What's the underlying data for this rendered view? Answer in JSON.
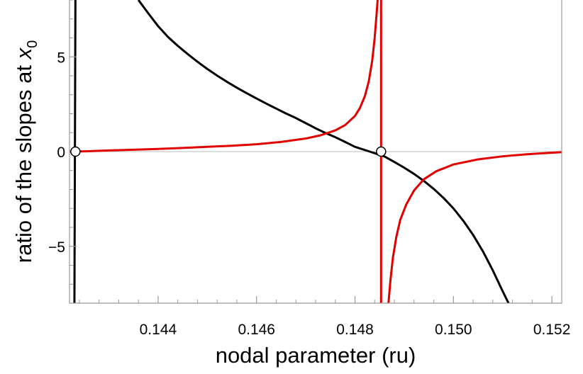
{
  "chart_data": {
    "type": "line",
    "xlabel": "nodal parameter (ru)",
    "ylabel_main": "ratio of the slopes at ",
    "ylabel_var": "x",
    "ylabel_sub": "0",
    "xlim": [
      0.1422,
      0.1522
    ],
    "ylim": [
      -8.0,
      8.0
    ],
    "x_ticks": [
      0.144,
      0.146,
      0.148,
      0.15,
      0.152
    ],
    "x_tick_labels": [
      "0.144",
      "0.146",
      "0.148",
      "0.150",
      "0.152"
    ],
    "y_ticks": [
      -5,
      0,
      5
    ],
    "y_tick_labels": [
      "−5",
      "0",
      "5"
    ],
    "grid": false,
    "zero_line": true,
    "series": [
      {
        "color": "#000000",
        "kind": "left-branch",
        "points": [
          [
            0.1423,
            -8.0
          ],
          [
            0.14232,
            8.0
          ]
        ]
      },
      {
        "color": "#000000",
        "kind": "main-curve",
        "points": [
          [
            0.1436,
            8.0
          ],
          [
            0.1438,
            7.3
          ],
          [
            0.144,
            6.62
          ],
          [
            0.1442,
            6.05
          ],
          [
            0.1444,
            5.58
          ],
          [
            0.1446,
            5.15
          ],
          [
            0.1448,
            4.74
          ],
          [
            0.145,
            4.36
          ],
          [
            0.1452,
            4.01
          ],
          [
            0.1454,
            3.68
          ],
          [
            0.1456,
            3.37
          ],
          [
            0.1458,
            3.08
          ],
          [
            0.146,
            2.8
          ],
          [
            0.1462,
            2.53
          ],
          [
            0.1464,
            2.27
          ],
          [
            0.1466,
            2.01
          ],
          [
            0.1468,
            1.77
          ],
          [
            0.147,
            1.5
          ],
          [
            0.1472,
            1.23
          ],
          [
            0.1474,
            0.98
          ],
          [
            0.1476,
            0.76
          ],
          [
            0.1478,
            0.51
          ],
          [
            0.148,
            0.25
          ],
          [
            0.1483,
            0.0
          ],
          [
            0.1486,
            -0.26
          ],
          [
            0.1488,
            -0.55
          ],
          [
            0.149,
            -0.85
          ],
          [
            0.1492,
            -1.18
          ],
          [
            0.1494,
            -1.55
          ],
          [
            0.1496,
            -1.97
          ],
          [
            0.1498,
            -2.45
          ],
          [
            0.15,
            -3.0
          ],
          [
            0.1502,
            -3.65
          ],
          [
            0.1504,
            -4.4
          ],
          [
            0.1506,
            -5.27
          ],
          [
            0.1508,
            -6.27
          ],
          [
            0.151,
            -7.37
          ],
          [
            0.15112,
            -8.0
          ]
        ]
      },
      {
        "color": "#e00000",
        "kind": "left-branch",
        "points": [
          [
            0.1422,
            0.0
          ],
          [
            0.1426,
            0.02
          ],
          [
            0.143,
            0.06
          ],
          [
            0.1435,
            0.1
          ],
          [
            0.144,
            0.14
          ],
          [
            0.1445,
            0.19
          ],
          [
            0.145,
            0.25
          ],
          [
            0.1455,
            0.31
          ],
          [
            0.146,
            0.39
          ],
          [
            0.1465,
            0.51
          ],
          [
            0.147,
            0.69
          ],
          [
            0.1473,
            0.86
          ],
          [
            0.1476,
            1.12
          ],
          [
            0.1478,
            1.4
          ],
          [
            0.148,
            1.88
          ],
          [
            0.1481,
            2.3
          ],
          [
            0.1482,
            2.92
          ],
          [
            0.14828,
            3.7
          ],
          [
            0.14835,
            4.8
          ],
          [
            0.1484,
            6.0
          ],
          [
            0.14844,
            7.3
          ],
          [
            0.14846,
            8.0
          ]
        ]
      },
      {
        "color": "#e00000",
        "kind": "vertical-asymptote",
        "points": [
          [
            0.14853,
            8.0
          ],
          [
            0.14853,
            -8.0
          ]
        ]
      },
      {
        "color": "#e00000",
        "kind": "right-branch",
        "points": [
          [
            0.14868,
            -8.0
          ],
          [
            0.14872,
            -6.8
          ],
          [
            0.14877,
            -5.6
          ],
          [
            0.14884,
            -4.5
          ],
          [
            0.14892,
            -3.6
          ],
          [
            0.14904,
            -2.8
          ],
          [
            0.1492,
            -2.05
          ],
          [
            0.1494,
            -1.46
          ],
          [
            0.14965,
            -1.04
          ],
          [
            0.15,
            -0.68
          ],
          [
            0.1505,
            -0.41
          ],
          [
            0.151,
            -0.25
          ],
          [
            0.1515,
            -0.14
          ],
          [
            0.152,
            -0.06
          ],
          [
            0.1522,
            -0.03
          ]
        ]
      }
    ],
    "marked_points": [
      {
        "x": 0.14232,
        "y": 0.0
      },
      {
        "x": 0.14853,
        "y": 0.0
      }
    ]
  }
}
